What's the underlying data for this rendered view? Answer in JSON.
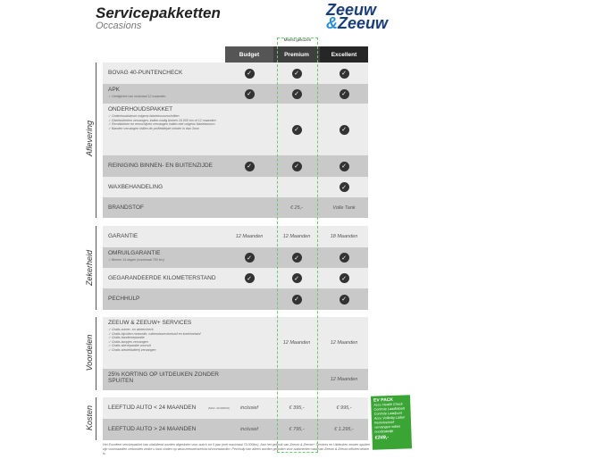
{
  "title": "Servicepakketten",
  "subtitle": "Occasions",
  "logo": {
    "line1": "Zeeuw",
    "line2": "& Zeeuw"
  },
  "most_chosen": "Meest gekozen",
  "columns": [
    "Budget",
    "Premium",
    "Excellent"
  ],
  "column_colors": [
    "#555555",
    "#3f3f3f",
    "#262626"
  ],
  "sections": [
    "Aflevering",
    "Zekerheid",
    "Voordelen",
    "Kosten"
  ],
  "rows": [
    {
      "label": "BOVAG 40-PUNTENCHECK",
      "notes": [],
      "cells": [
        "check",
        "check",
        "check"
      ]
    },
    {
      "label": "APK",
      "notes": [
        "Geldigheid van minimaal 12 maanden"
      ],
      "cells": [
        "check",
        "check",
        "check"
      ]
    },
    {
      "label": "ONDERHOUDSPAKKET",
      "notes": [
        "Onderhoudsbeurt volgens fabrieksvoorschriften",
        "Distributieriem vervangen, indien nodig binnen 15.000 km of 12 maanden",
        "Remblokken en remschijven vervangen indien niet volgens fabrieksnorm",
        "Banden vervangen indien de profieldiepte minder is dan 3mm"
      ],
      "cells": [
        "",
        "check",
        "check"
      ]
    },
    {
      "label": "REINIGING BINNEN- EN BUITENZIJDE",
      "notes": [],
      "cells": [
        "check",
        "check",
        "check"
      ]
    },
    {
      "label": "WAXBEHANDELING",
      "notes": [],
      "cells": [
        "",
        "",
        "check"
      ]
    },
    {
      "label": "BRANDSTOF",
      "notes": [],
      "cells": [
        "",
        "€ 25,-",
        "Volle Tank"
      ]
    },
    {
      "label": "GARANTIE",
      "notes": [],
      "cells": [
        "12 Maanden",
        "12 Maanden",
        "18 Maanden"
      ]
    },
    {
      "label": "OMRUILGARANTIE",
      "notes": [
        "Binnen 14 dagen (maximaal 750 km)"
      ],
      "cells": [
        "check",
        "check",
        "check"
      ]
    },
    {
      "label": "GEGARANDEERDE KILOMETERSTAND",
      "notes": [],
      "cells": [
        "check",
        "check",
        "check"
      ]
    },
    {
      "label": "PECHHULP",
      "notes": [],
      "cells": [
        "",
        "check",
        "check"
      ]
    },
    {
      "label": "ZEEUW & ZEEUW+ SERVICES",
      "notes": [
        "Gratis zomer- en wintercheck",
        "Gratis bijvullen motorolie, ruitenwisservloeistof en koelvloeistof",
        "Gratis bandenreparatie",
        "Gratis lampjes vervangen",
        "Gratis sterreparatie voorruit",
        "Gratis sleutelbatterij vervangen"
      ],
      "cells": [
        "",
        "12 Maanden",
        "12 Maanden"
      ]
    },
    {
      "label": "25% KORTING OP UITDEUKEN ZONDER SPUITEN",
      "notes": [],
      "cells": [
        "",
        "",
        "12 Maanden"
      ]
    },
    {
      "label": "LEEFTIJD AUTO < 24 MAANDEN",
      "small": "(MAX. 30.000KM)",
      "notes": [],
      "cells": [
        "inclusief",
        "€ 395,-",
        "€ 995,-"
      ]
    },
    {
      "label": "LEEFTIJD AUTO > 24 MAANDEN",
      "notes": [],
      "cells": [
        "inclusief",
        "€ 795,-",
        "€ 1.295,-"
      ]
    }
  ],
  "ev_pack": {
    "title": "EV PACK",
    "items": [
      "Accu Health Check",
      "Controle Laadkabels",
      "Controle Laadpunt",
      "Accu Volledig Laden",
      "Remvloeistof vervangen indien noodzakelijk"
    ],
    "price": "€249,-",
    "color": "#3aa535"
  },
  "footer": "Het Excellent servicepakket kan uitsluitend worden afgesloten voor auto's tot 5 jaar (met maximaal 75.000km). Aan het gebruik van Zeeuw & Zeeuw+ Services en Uitdeuken zonder spuiten zijn voorwaarden verbonden welke u kunt vinden op www.zeeuwenzeeuw.nl/voorwaarden. Pechhulp kan alleen worden geboden voor automerken waarvan Zeeuw & Zeeuw officieel dealer is."
}
